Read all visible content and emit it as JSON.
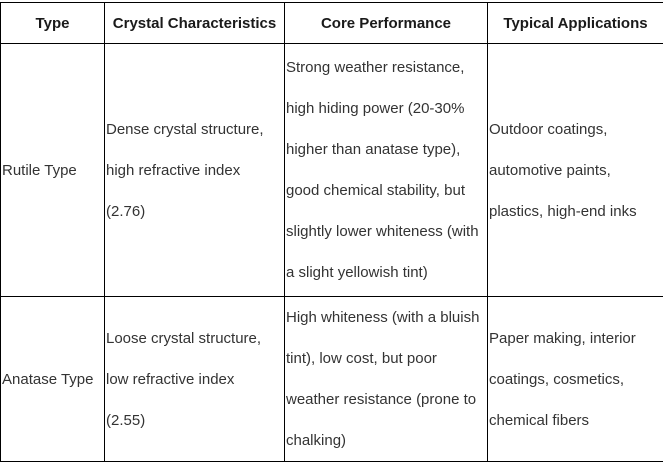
{
  "table": {
    "headers": {
      "type": "Type",
      "crystal_characteristics": "Crystal Characteristics",
      "core_performance": "Core Performance",
      "typical_applications": "Typical Applications"
    },
    "rows": [
      {
        "type": "Rutile Type",
        "crystal_characteristics": [
          "Dense crystal structure,",
          "high refractive index",
          "(2.76)"
        ],
        "core_performance": [
          "Strong weather resistance,",
          "high hiding power (20-30%",
          "higher than anatase type),",
          "good chemical stability, but",
          "slightly lower whiteness (with",
          "a slight yellowish tint)"
        ],
        "typical_applications": [
          "Outdoor coatings,",
          "automotive paints,",
          "plastics, high-end inks"
        ]
      },
      {
        "type": "Anatase Type",
        "crystal_characteristics": [
          "Loose crystal structure,",
          "low refractive index",
          "(2.55)"
        ],
        "core_performance": [
          "High whiteness (with a bluish",
          "tint), low cost, but poor",
          "weather resistance (prone to",
          "chalking)"
        ],
        "typical_applications": [
          "Paper making, interior",
          "coatings, cosmetics,",
          "chemical fibers"
        ]
      }
    ],
    "colors": {
      "border": "#000000",
      "header_text": "#1a1a1a",
      "body_text": "#333333",
      "background": "#ffffff"
    }
  }
}
